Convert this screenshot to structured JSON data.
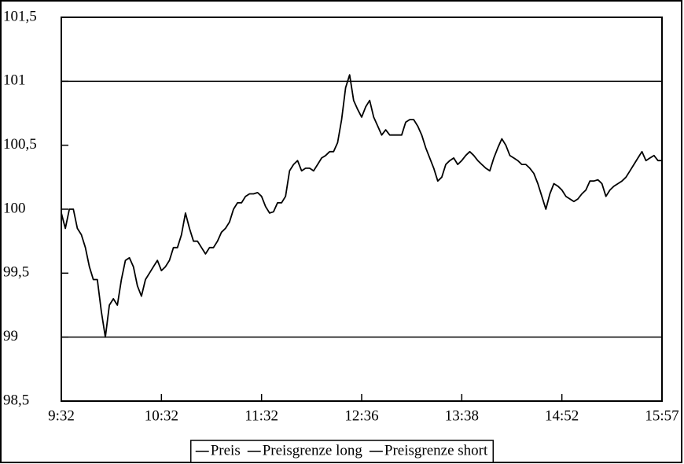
{
  "chart_data": {
    "type": "line",
    "categories": [
      "9:32",
      null,
      null,
      null,
      null,
      null,
      null,
      null,
      null,
      null,
      null,
      null,
      null,
      null,
      null,
      null,
      null,
      null,
      null,
      null,
      null,
      null,
      null,
      null,
      null,
      "10:32",
      null,
      null,
      null,
      null,
      null,
      null,
      null,
      null,
      null,
      null,
      null,
      null,
      null,
      null,
      null,
      null,
      null,
      null,
      null,
      null,
      null,
      null,
      null,
      null,
      "11:32",
      null,
      null,
      null,
      null,
      null,
      null,
      null,
      null,
      null,
      null,
      null,
      null,
      null,
      null,
      null,
      null,
      null,
      null,
      null,
      null,
      null,
      null,
      null,
      null,
      "12:36",
      null,
      null,
      null,
      null,
      null,
      null,
      null,
      null,
      null,
      null,
      null,
      null,
      null,
      null,
      null,
      null,
      null,
      null,
      null,
      null,
      null,
      null,
      null,
      null,
      "13:38",
      null,
      null,
      null,
      null,
      null,
      null,
      null,
      null,
      null,
      null,
      null,
      null,
      null,
      null,
      null,
      null,
      null,
      null,
      null,
      null,
      null,
      null,
      null,
      null,
      "14:52",
      null,
      null,
      null,
      null,
      null,
      null,
      null,
      null,
      null,
      null,
      null,
      null,
      null,
      null,
      null,
      null,
      null,
      null,
      null,
      null,
      null,
      null,
      null,
      null,
      "15:57"
    ],
    "series": [
      {
        "name": "Preis",
        "color": "#000000",
        "values": [
          99.97,
          99.85,
          100.0,
          100.0,
          99.85,
          99.8,
          99.7,
          99.55,
          99.45,
          99.45,
          99.2,
          99.0,
          99.25,
          99.3,
          99.25,
          99.45,
          99.6,
          99.62,
          99.55,
          99.4,
          99.32,
          99.45,
          99.5,
          99.55,
          99.6,
          99.52,
          99.55,
          99.6,
          99.7,
          99.7,
          99.8,
          99.97,
          99.85,
          99.75,
          99.75,
          99.7,
          99.65,
          99.7,
          99.7,
          99.75,
          99.82,
          99.85,
          99.9,
          100.0,
          100.05,
          100.05,
          100.1,
          100.12,
          100.12,
          100.13,
          100.1,
          100.02,
          99.97,
          99.98,
          100.05,
          100.05,
          100.1,
          100.3,
          100.35,
          100.38,
          100.3,
          100.32,
          100.32,
          100.3,
          100.35,
          100.4,
          100.42,
          100.45,
          100.45,
          100.52,
          100.7,
          100.95,
          101.05,
          100.85,
          100.78,
          100.72,
          100.8,
          100.85,
          100.72,
          100.65,
          100.58,
          100.62,
          100.58,
          100.58,
          100.58,
          100.58,
          100.68,
          100.7,
          100.7,
          100.65,
          100.58,
          100.48,
          100.4,
          100.32,
          100.22,
          100.25,
          100.35,
          100.38,
          100.4,
          100.35,
          100.38,
          100.42,
          100.45,
          100.42,
          100.38,
          100.35,
          100.32,
          100.3,
          100.4,
          100.48,
          100.55,
          100.5,
          100.42,
          100.4,
          100.38,
          100.35,
          100.35,
          100.32,
          100.28,
          100.2,
          100.1,
          100.0,
          100.12,
          100.2,
          100.18,
          100.15,
          100.1,
          100.08,
          100.06,
          100.08,
          100.12,
          100.15,
          100.22,
          100.22,
          100.23,
          100.2,
          100.1,
          100.15,
          100.18,
          100.2,
          100.22,
          100.25,
          100.3,
          100.35,
          100.4,
          100.45,
          100.38,
          100.4,
          100.42,
          100.38,
          100.38
        ]
      }
    ],
    "reference_lines": [
      {
        "name": "Preisgrenze long",
        "value": 101,
        "color": "#000000"
      },
      {
        "name": "Preisgrenze short",
        "value": 99,
        "color": "#000000"
      }
    ],
    "ylim": [
      98.5,
      101.5
    ],
    "yticks": [
      {
        "value": 98.5,
        "label": "98,5"
      },
      99,
      {
        "value": 99.5,
        "label": "99,5"
      },
      100,
      {
        "value": 100.5,
        "label": "100,5"
      },
      101,
      {
        "value": 101.5,
        "label": "101,5"
      }
    ],
    "legend": "bottom"
  }
}
